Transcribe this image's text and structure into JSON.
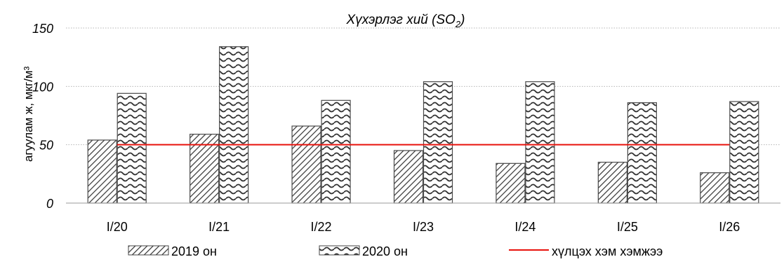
{
  "chart_data": {
    "type": "bar",
    "title": "Хүхэрлэг хий (SO",
    "title_sub": "2",
    "title_end": ")",
    "ylabel": "агуулам ж, мкг/м³",
    "ylim": [
      0,
      150
    ],
    "yticks": [
      0,
      50,
      100,
      150
    ],
    "grid": true,
    "legend_position": "bottom",
    "categories": [
      "I/20",
      "I/21",
      "I/22",
      "I/23",
      "I/24",
      "I/25",
      "I/26"
    ],
    "series": [
      {
        "name": "2019 он",
        "pattern": "diagonal-hatch",
        "values": [
          54,
          59,
          66,
          45,
          34,
          35,
          26
        ]
      },
      {
        "name": "2020 он",
        "pattern": "wave",
        "values": [
          94,
          134,
          88,
          104,
          104,
          86,
          87
        ]
      }
    ],
    "threshold": {
      "name": "хүлцэх хэм хэмжээ",
      "value": 50,
      "color": "#e8120c"
    }
  }
}
